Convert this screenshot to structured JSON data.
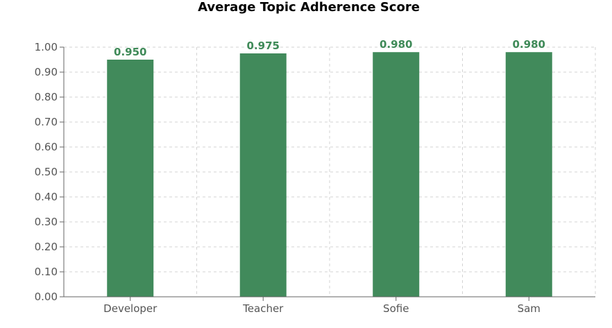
{
  "title": "Average Topic Adherence Score",
  "colors": {
    "bar": "#418a5b",
    "label": "#3f8a58",
    "grid": "#d3d3d3",
    "axis": "#666666"
  },
  "chart_data": {
    "type": "bar",
    "title": "Average Topic Adherence Score",
    "xlabel": "",
    "ylabel": "",
    "categories": [
      "Developer",
      "Teacher",
      "Sofie",
      "Sam"
    ],
    "values": [
      0.95,
      0.975,
      0.98,
      0.98
    ],
    "value_labels": [
      "0.950",
      "0.975",
      "0.980",
      "0.980"
    ],
    "ylim": [
      0,
      1
    ],
    "yticks": [
      "0.00",
      "0.10",
      "0.20",
      "0.30",
      "0.40",
      "0.50",
      "0.60",
      "0.70",
      "0.80",
      "0.90",
      "1.00"
    ],
    "grid": true,
    "legend": "none"
  }
}
